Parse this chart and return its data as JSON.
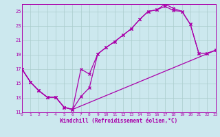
{
  "bg_color": "#cce8ee",
  "grid_color": "#aacccc",
  "line_color": "#aa00aa",
  "xlabel": "Windchill (Refroidissement éolien,°C)",
  "xlim": [
    0,
    23
  ],
  "ylim": [
    11,
    26
  ],
  "yticks": [
    11,
    13,
    15,
    17,
    19,
    21,
    23,
    25
  ],
  "xticks": [
    0,
    1,
    2,
    3,
    4,
    5,
    6,
    7,
    8,
    9,
    10,
    11,
    12,
    13,
    14,
    15,
    16,
    17,
    18,
    19,
    20,
    21,
    22,
    23
  ],
  "curves": [
    {
      "x": [
        0,
        1,
        2,
        3,
        4,
        5,
        6,
        7,
        8,
        9,
        10,
        11,
        12,
        13,
        14,
        15,
        16,
        17,
        18,
        19,
        20,
        21,
        22,
        23
      ],
      "y": [
        17,
        15.2,
        14.0,
        13.1,
        13.1,
        11.7,
        11.4,
        13.2,
        14.4,
        19.1,
        20.0,
        20.8,
        21.7,
        22.6,
        23.9,
        25.0,
        25.2,
        26.0,
        25.4,
        25.0,
        23.2,
        19.2,
        19.2,
        19.6
      ]
    },
    {
      "x": [
        0,
        1,
        2,
        3,
        4,
        5,
        6,
        7,
        8,
        9,
        10,
        11,
        12,
        13,
        14,
        15,
        16,
        17,
        18,
        19,
        20,
        21,
        22,
        23
      ],
      "y": [
        17,
        15.2,
        14.0,
        13.1,
        13.1,
        11.7,
        11.4,
        17.0,
        16.3,
        19.1,
        20.0,
        20.8,
        21.7,
        22.6,
        23.9,
        25.0,
        25.2,
        25.7,
        25.1,
        25.0,
        23.2,
        19.2,
        19.2,
        19.6
      ]
    },
    {
      "x": [
        0,
        1,
        2,
        3,
        4,
        5,
        6,
        23
      ],
      "y": [
        17,
        15.2,
        14.0,
        13.1,
        13.1,
        11.7,
        11.4,
        19.6
      ]
    }
  ]
}
